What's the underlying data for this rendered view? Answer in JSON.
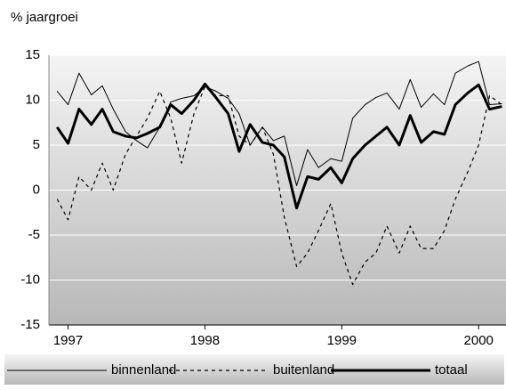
{
  "chart_data": {
    "type": "line",
    "title": "% jaargroei",
    "x": [
      1996.92,
      1997.0,
      1997.08,
      1997.17,
      1997.25,
      1997.33,
      1997.42,
      1997.5,
      1997.58,
      1997.67,
      1997.75,
      1997.83,
      1997.92,
      1998.0,
      1998.08,
      1998.17,
      1998.25,
      1998.33,
      1998.42,
      1998.5,
      1998.58,
      1998.67,
      1998.75,
      1998.83,
      1998.92,
      1999.0,
      1999.08,
      1999.17,
      1999.25,
      1999.33,
      1999.42,
      1999.5,
      1999.58,
      1999.67,
      1999.75,
      1999.83,
      1999.92,
      2000.0,
      2000.08,
      2000.17
    ],
    "series": [
      {
        "name": "binnenland",
        "color": "#000000",
        "width": 1,
        "dash": "solid",
        "values": [
          11,
          9.5,
          13,
          10.6,
          11.6,
          9,
          6.5,
          5.5,
          4.7,
          7,
          9.8,
          10.2,
          10.5,
          11.5,
          11,
          10.2,
          8.5,
          5,
          7,
          5.5,
          6,
          0.5,
          4.5,
          2.5,
          3.5,
          3.2,
          8,
          9.5,
          10.3,
          10.8,
          9,
          12.3,
          9.2,
          10.7,
          9.5,
          13,
          13.8,
          14.3,
          9.5,
          9.6
        ]
      },
      {
        "name": "buitenland",
        "color": "#000000",
        "width": 1.2,
        "dash": "dotted",
        "values": [
          -1,
          -3.3,
          1.5,
          0,
          3,
          0,
          4,
          6,
          8,
          11,
          8,
          3,
          8.5,
          11.5,
          10.5,
          10.5,
          6,
          5,
          7,
          4,
          -3,
          -8.5,
          -7,
          -4.5,
          -1.5,
          -7,
          -10.5,
          -8,
          -7,
          -4,
          -7,
          -4,
          -6.5,
          -6.5,
          -4.5,
          -1,
          2,
          5,
          10.5,
          9.5
        ]
      },
      {
        "name": "totaal",
        "color": "#000000",
        "width": 3,
        "dash": "solid",
        "values": [
          7,
          5.2,
          9,
          7.3,
          9,
          6.5,
          6,
          5.8,
          6.3,
          7,
          9.5,
          8.5,
          10,
          11.8,
          10.3,
          8.5,
          4.3,
          7.3,
          5.3,
          5,
          3.7,
          -2,
          1.5,
          1.2,
          2.5,
          0.8,
          3.5,
          5,
          6,
          7,
          5,
          8.3,
          5.3,
          6.5,
          6.2,
          9.5,
          10.8,
          11.7,
          9,
          9.3
        ]
      }
    ],
    "xlim": [
      1996.86,
      2000.2
    ],
    "xticks": [
      1997,
      1998,
      1999,
      2000
    ],
    "ylim": [
      -15,
      15
    ],
    "yticks": [
      -15,
      -10,
      -5,
      0,
      5,
      10,
      15
    ],
    "grid": true,
    "legend": "bottom"
  }
}
